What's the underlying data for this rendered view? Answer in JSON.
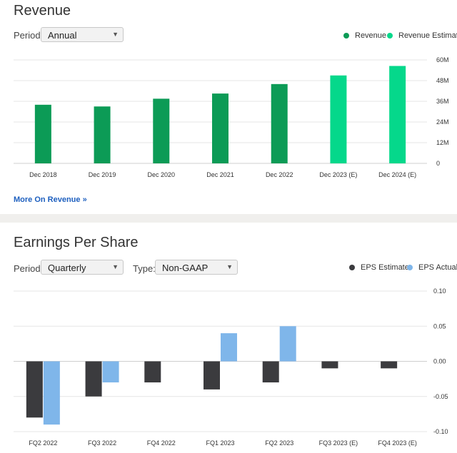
{
  "revenue": {
    "title": "Revenue",
    "period_label": "Period:",
    "period_value": "Annual",
    "legend": [
      {
        "label": "Revenue",
        "color": "#0c9b56"
      },
      {
        "label": "Revenue Estimate",
        "color": "#05d88b"
      }
    ],
    "more_link": "More On Revenue »"
  },
  "eps": {
    "title": "Earnings Per Share",
    "period_label": "Period:",
    "period_value": "Quarterly",
    "type_label": "Type:",
    "type_value": "Non-GAAP",
    "legend": [
      {
        "label": "EPS Estimate",
        "color": "#3b3b3e"
      },
      {
        "label": "EPS Actual",
        "color": "#7fb6ea"
      }
    ]
  },
  "chart_data": [
    {
      "type": "bar",
      "title": "Revenue",
      "categories": [
        "Dec 2018",
        "Dec 2019",
        "Dec 2020",
        "Dec 2021",
        "Dec 2022",
        "Dec 2023 (E)",
        "Dec 2024 (E)"
      ],
      "values": [
        34,
        33,
        37.5,
        40.5,
        46,
        51,
        56.5
      ],
      "value_unit": "M",
      "estimate": [
        false,
        false,
        false,
        false,
        false,
        true,
        true
      ],
      "colors": {
        "actual": "#0c9b56",
        "estimate": "#05d88b"
      },
      "yticks": [
        "60M",
        "48M",
        "36M",
        "24M",
        "12M",
        "0"
      ],
      "ylim": [
        0,
        60
      ],
      "grid": true,
      "legend_position": "top-right"
    },
    {
      "type": "bar",
      "title": "Earnings Per Share",
      "categories": [
        "FQ2 2022",
        "FQ3 2022",
        "FQ4 2022",
        "FQ1 2023",
        "FQ2 2023",
        "FQ3 2023 (E)",
        "FQ4 2023 (E)"
      ],
      "series": [
        {
          "name": "EPS Estimate",
          "color": "#3b3b3e",
          "values": [
            -0.08,
            -0.05,
            -0.03,
            -0.04,
            -0.03,
            -0.01,
            -0.01
          ]
        },
        {
          "name": "EPS Actual",
          "color": "#7fb6ea",
          "values": [
            -0.09,
            -0.03,
            null,
            0.04,
            0.05,
            null,
            null
          ]
        }
      ],
      "yticks": [
        "0.10",
        "0.05",
        "0.00",
        "-0.05",
        "-0.10"
      ],
      "ylim": [
        -0.1,
        0.1
      ],
      "grid": true,
      "legend_position": "top-right"
    }
  ]
}
